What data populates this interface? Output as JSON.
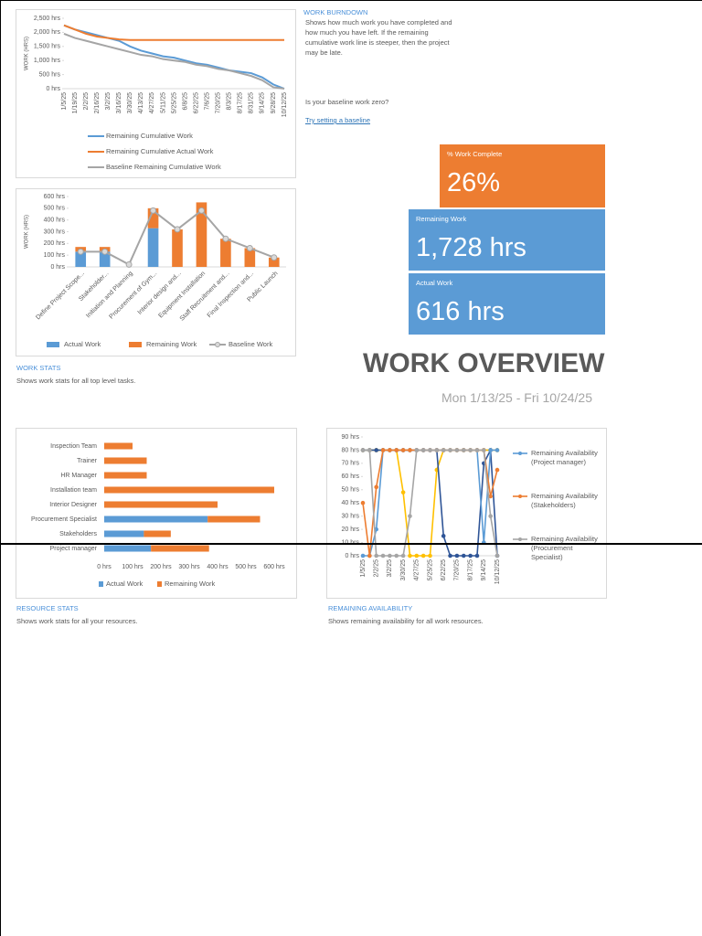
{
  "report": {
    "title": "WORK OVERVIEW",
    "date_range": "Mon 1/13/25 - Fri 10/24/25"
  },
  "kpis": [
    {
      "label": "% Work Complete",
      "value": "26%",
      "color": "#ed7d31"
    },
    {
      "label": "Remaining Work",
      "value": "1,728 hrs",
      "color": "#5b9bd5"
    },
    {
      "label": "Actual Work",
      "value": "616 hrs",
      "color": "#5b9bd5"
    }
  ],
  "sections": [
    {
      "title": "WORK BURNDOWN",
      "description": "Shows how much work you have completed and how much you have left. If the remaining cumulative work line is steeper, then the project may be late.",
      "question": "Is your baseline work zero?",
      "link": "Try setting a baseline"
    },
    {
      "title": "WORK STATS",
      "description": "Shows work stats for all top level tasks."
    },
    {
      "title": "RESOURCE STATS",
      "description": "Shows work stats for all your resources."
    },
    {
      "title": "REMAINING AVAILABILITY",
      "description": "Shows remaining availability for all work resources."
    }
  ],
  "chart_data": [
    {
      "type": "line",
      "y_label": "WORK (HRS)",
      "legend": "bottom",
      "markers": false,
      "grid": false,
      "categories": [
        "1/5/25",
        "1/19/25",
        "2/2/25",
        "2/16/25",
        "3/2/25",
        "3/16/25",
        "3/30/25",
        "4/13/25",
        "4/27/25",
        "5/11/25",
        "5/25/25",
        "6/8/25",
        "6/22/25",
        "7/6/25",
        "7/20/25",
        "8/3/25",
        "8/17/25",
        "8/31/25",
        "9/14/25",
        "9/28/25",
        "10/12/25"
      ],
      "ylim": [
        0,
        2500
      ],
      "yticks": [
        {
          "value": 0,
          "label": "0 hrs"
        },
        {
          "value": 500,
          "label": "500 hrs"
        },
        {
          "value": 1000,
          "label": "1,000 hrs"
        },
        {
          "value": 1500,
          "label": "1,500 hrs"
        },
        {
          "value": 2000,
          "label": "2,000 hrs"
        },
        {
          "value": 2500,
          "label": "2,500 hrs"
        }
      ],
      "series": [
        {
          "name": "Remaining Cumulative Work",
          "color": "#5b9bd5",
          "values": [
            2250,
            2100,
            2000,
            1900,
            1800,
            1700,
            1500,
            1350,
            1250,
            1150,
            1100,
            1000,
            900,
            850,
            750,
            650,
            600,
            550,
            400,
            150,
            0
          ]
        },
        {
          "name": "Remaining Cumulative Actual Work",
          "color": "#ed7d31",
          "values": [
            2250,
            2100,
            1950,
            1850,
            1800,
            1750,
            1728,
            1728,
            1728,
            1728,
            1728,
            1728,
            1728,
            1728,
            1728,
            1728,
            1728,
            1728,
            1728,
            1728,
            1728
          ]
        },
        {
          "name": "Baseline Remaining Cumulative Work",
          "color": "#a5a5a5",
          "values": [
            1950,
            1800,
            1700,
            1600,
            1500,
            1400,
            1300,
            1200,
            1150,
            1050,
            1000,
            950,
            850,
            800,
            700,
            650,
            550,
            450,
            300,
            50,
            0
          ]
        }
      ]
    },
    {
      "type": "combo",
      "y_label": "WORK (HRS)",
      "legend": "bottom",
      "grid": false,
      "categories": [
        "Define Project Scope...",
        "Stakeholder...",
        "Initiation and Planning",
        "Procurement of Gym...",
        "Interior design and...",
        "Equipment Installation",
        "Staff Recruitment and...",
        "Final Inspection and...",
        "Public Launch"
      ],
      "ylim": [
        0,
        600
      ],
      "yticks": [
        {
          "value": 0,
          "label": "0 hrs"
        },
        {
          "value": 100,
          "label": "100 hrs"
        },
        {
          "value": 200,
          "label": "200 hrs"
        },
        {
          "value": 300,
          "label": "300 hrs"
        },
        {
          "value": 400,
          "label": "400 hrs"
        },
        {
          "value": 500,
          "label": "500 hrs"
        },
        {
          "value": 600,
          "label": "600 hrs"
        }
      ],
      "series": [
        {
          "name": "Actual Work",
          "type": "bar",
          "color": "#5b9bd5",
          "values": [
            130,
            130,
            0,
            330,
            0,
            0,
            0,
            0,
            0
          ]
        },
        {
          "name": "Remaining Work",
          "type": "bar",
          "color": "#ed7d31",
          "values": [
            40,
            40,
            0,
            170,
            320,
            550,
            240,
            160,
            80
          ]
        },
        {
          "name": "Baseline Work",
          "type": "line",
          "color": "#a5a5a5",
          "values": [
            130,
            130,
            20,
            480,
            320,
            480,
            240,
            160,
            80
          ]
        }
      ]
    },
    {
      "type": "hbar",
      "legend": "bottom",
      "grid": false,
      "categories": [
        "Inspection Team",
        "Trainer",
        "HR Manager",
        "Installation team",
        "Interior Designer",
        "Procurement Specialist",
        "Stakeholders",
        "Project manager"
      ],
      "xlim": [
        0,
        600
      ],
      "xticks": [
        {
          "value": 0,
          "label": "0 hrs"
        },
        {
          "value": 100,
          "label": "100 hrs"
        },
        {
          "value": 200,
          "label": "200 hrs"
        },
        {
          "value": 300,
          "label": "300 hrs"
        },
        {
          "value": 400,
          "label": "400 hrs"
        },
        {
          "value": 500,
          "label": "500 hrs"
        },
        {
          "value": 600,
          "label": "600 hrs"
        }
      ],
      "series": [
        {
          "name": "Actual Work",
          "color": "#5b9bd5",
          "values": [
            0,
            0,
            0,
            0,
            0,
            365,
            140,
            165
          ]
        },
        {
          "name": "Remaining Work",
          "color": "#ed7d31",
          "values": [
            100,
            150,
            150,
            600,
            400,
            185,
            95,
            205
          ]
        }
      ]
    },
    {
      "type": "line",
      "legend": "right",
      "markers": true,
      "grid": false,
      "categories": [
        "1/5/25",
        null,
        "2/2/25",
        null,
        "3/2/25",
        null,
        "3/30/25",
        null,
        "4/27/25",
        null,
        "5/25/25",
        null,
        "6/22/25",
        null,
        "7/20/25",
        null,
        "8/17/25",
        null,
        "9/14/25",
        null,
        "10/12/25"
      ],
      "ylim": [
        0,
        90
      ],
      "yticks": [
        {
          "value": 0,
          "label": "0 hrs"
        },
        {
          "value": 10,
          "label": "10 hrs"
        },
        {
          "value": 20,
          "label": "20 hrs"
        },
        {
          "value": 30,
          "label": "30 hrs"
        },
        {
          "value": 40,
          "label": "40 hrs"
        },
        {
          "value": 50,
          "label": "50 hrs"
        },
        {
          "value": 60,
          "label": "60 hrs"
        },
        {
          "value": 70,
          "label": "70 hrs"
        },
        {
          "value": 80,
          "label": "80 hrs"
        },
        {
          "value": 90,
          "label": "90 hrs"
        }
      ],
      "series": [
        {
          "color": "#f8cbad",
          "values": [
            80,
            80,
            80,
            80,
            80,
            80,
            80,
            80,
            80,
            80,
            80,
            80,
            80,
            80,
            80,
            80,
            80,
            80,
            80,
            80,
            80
          ]
        },
        {
          "color": "#ffc000",
          "values": [
            80,
            80,
            80,
            80,
            80,
            80,
            48,
            0,
            0,
            0,
            0,
            65,
            80,
            80,
            80,
            80,
            80,
            80,
            80,
            80,
            80
          ]
        },
        {
          "color": "#2f5597",
          "values": [
            80,
            80,
            80,
            80,
            80,
            80,
            80,
            80,
            80,
            80,
            80,
            80,
            15,
            0,
            0,
            0,
            0,
            0,
            70,
            80,
            0
          ]
        },
        {
          "name": "Remaining Availability (Project manager)",
          "color": "#5b9bd5",
          "values": [
            0,
            0,
            20,
            80,
            80,
            80,
            80,
            80,
            80,
            80,
            80,
            80,
            80,
            80,
            80,
            80,
            80,
            80,
            10,
            80,
            80
          ]
        },
        {
          "name": "Remaining Availability (Stakeholders)",
          "color": "#ed7d31",
          "values": [
            40,
            0,
            52,
            80,
            80,
            80,
            80,
            80,
            80,
            80,
            80,
            80,
            80,
            80,
            80,
            80,
            80,
            80,
            80,
            45,
            65
          ]
        },
        {
          "name": "Remaining Availability (Procurement Specialist)",
          "color": "#a5a5a5",
          "values": [
            80,
            80,
            0,
            0,
            0,
            0,
            0,
            30,
            80,
            80,
            80,
            80,
            80,
            80,
            80,
            80,
            80,
            80,
            80,
            30,
            0
          ]
        }
      ]
    }
  ]
}
